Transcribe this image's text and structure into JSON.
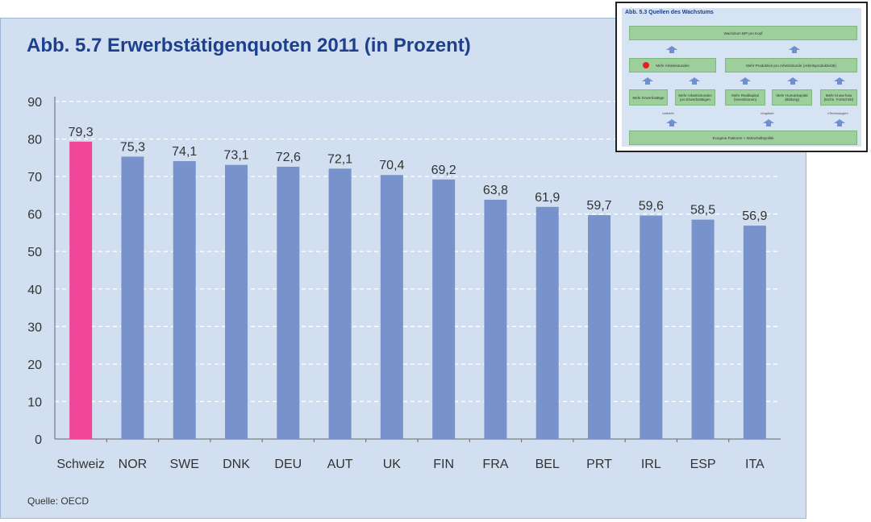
{
  "title": "Abb. 5.7  Erwerbstätigenquoten 2011 (in Prozent)",
  "source": "Quelle: OECD",
  "colors": {
    "highlight": "#f0479a",
    "bar": "#7892cc",
    "background": "#d1dff1",
    "title": "#1e3f8c"
  },
  "chart_data": {
    "type": "bar",
    "title": "Abb. 5.7  Erwerbstätigenquoten 2011 (in Prozent)",
    "categories": [
      "Schweiz",
      "NOR",
      "SWE",
      "DNK",
      "DEU",
      "AUT",
      "UK",
      "FIN",
      "FRA",
      "BEL",
      "PRT",
      "IRL",
      "ESP",
      "ITA"
    ],
    "values": [
      79.3,
      75.3,
      74.1,
      73.1,
      72.6,
      72.1,
      70.4,
      69.2,
      63.8,
      61.9,
      59.7,
      59.6,
      58.5,
      56.9
    ],
    "value_labels": [
      "79,3",
      "75,3",
      "74,1",
      "73,1",
      "72,6",
      "72,1",
      "70,4",
      "69,2",
      "63,8",
      "61,9",
      "59,7",
      "59,6",
      "58,5",
      "56,9"
    ],
    "highlight_category": "Schweiz",
    "yticks": [
      "0",
      "10",
      "20",
      "30",
      "40",
      "50",
      "60",
      "70",
      "80",
      "90"
    ],
    "ylim": [
      0,
      90
    ],
    "grid": true,
    "xlabel": "",
    "ylabel": ""
  },
  "inset": {
    "title": "Abb. 5.3  Quellen des Wachstums",
    "top_box": "Wachstum BIP pro Kopf",
    "left_box": "Mehr Arbeitsstunden",
    "right_box": "Mehr Produktion pro Arbeitsstunde (Arbeitsproduktivität)",
    "small_boxes": [
      "Mehr Erwerbstätige",
      "Mehr Arbeitsstunden pro Erwerbstätigen",
      "Mehr Realkapital (Investitionen)",
      "Mehr Humankapital (Bildung)",
      "Mehr Know-how (techn. Fortschritt)"
    ],
    "groups": [
      "«Arbeit»",
      "«Kapital»",
      "«Technologie»"
    ],
    "bottom_box": "Exogene Faktoren + Wirtschaftspolitik"
  }
}
